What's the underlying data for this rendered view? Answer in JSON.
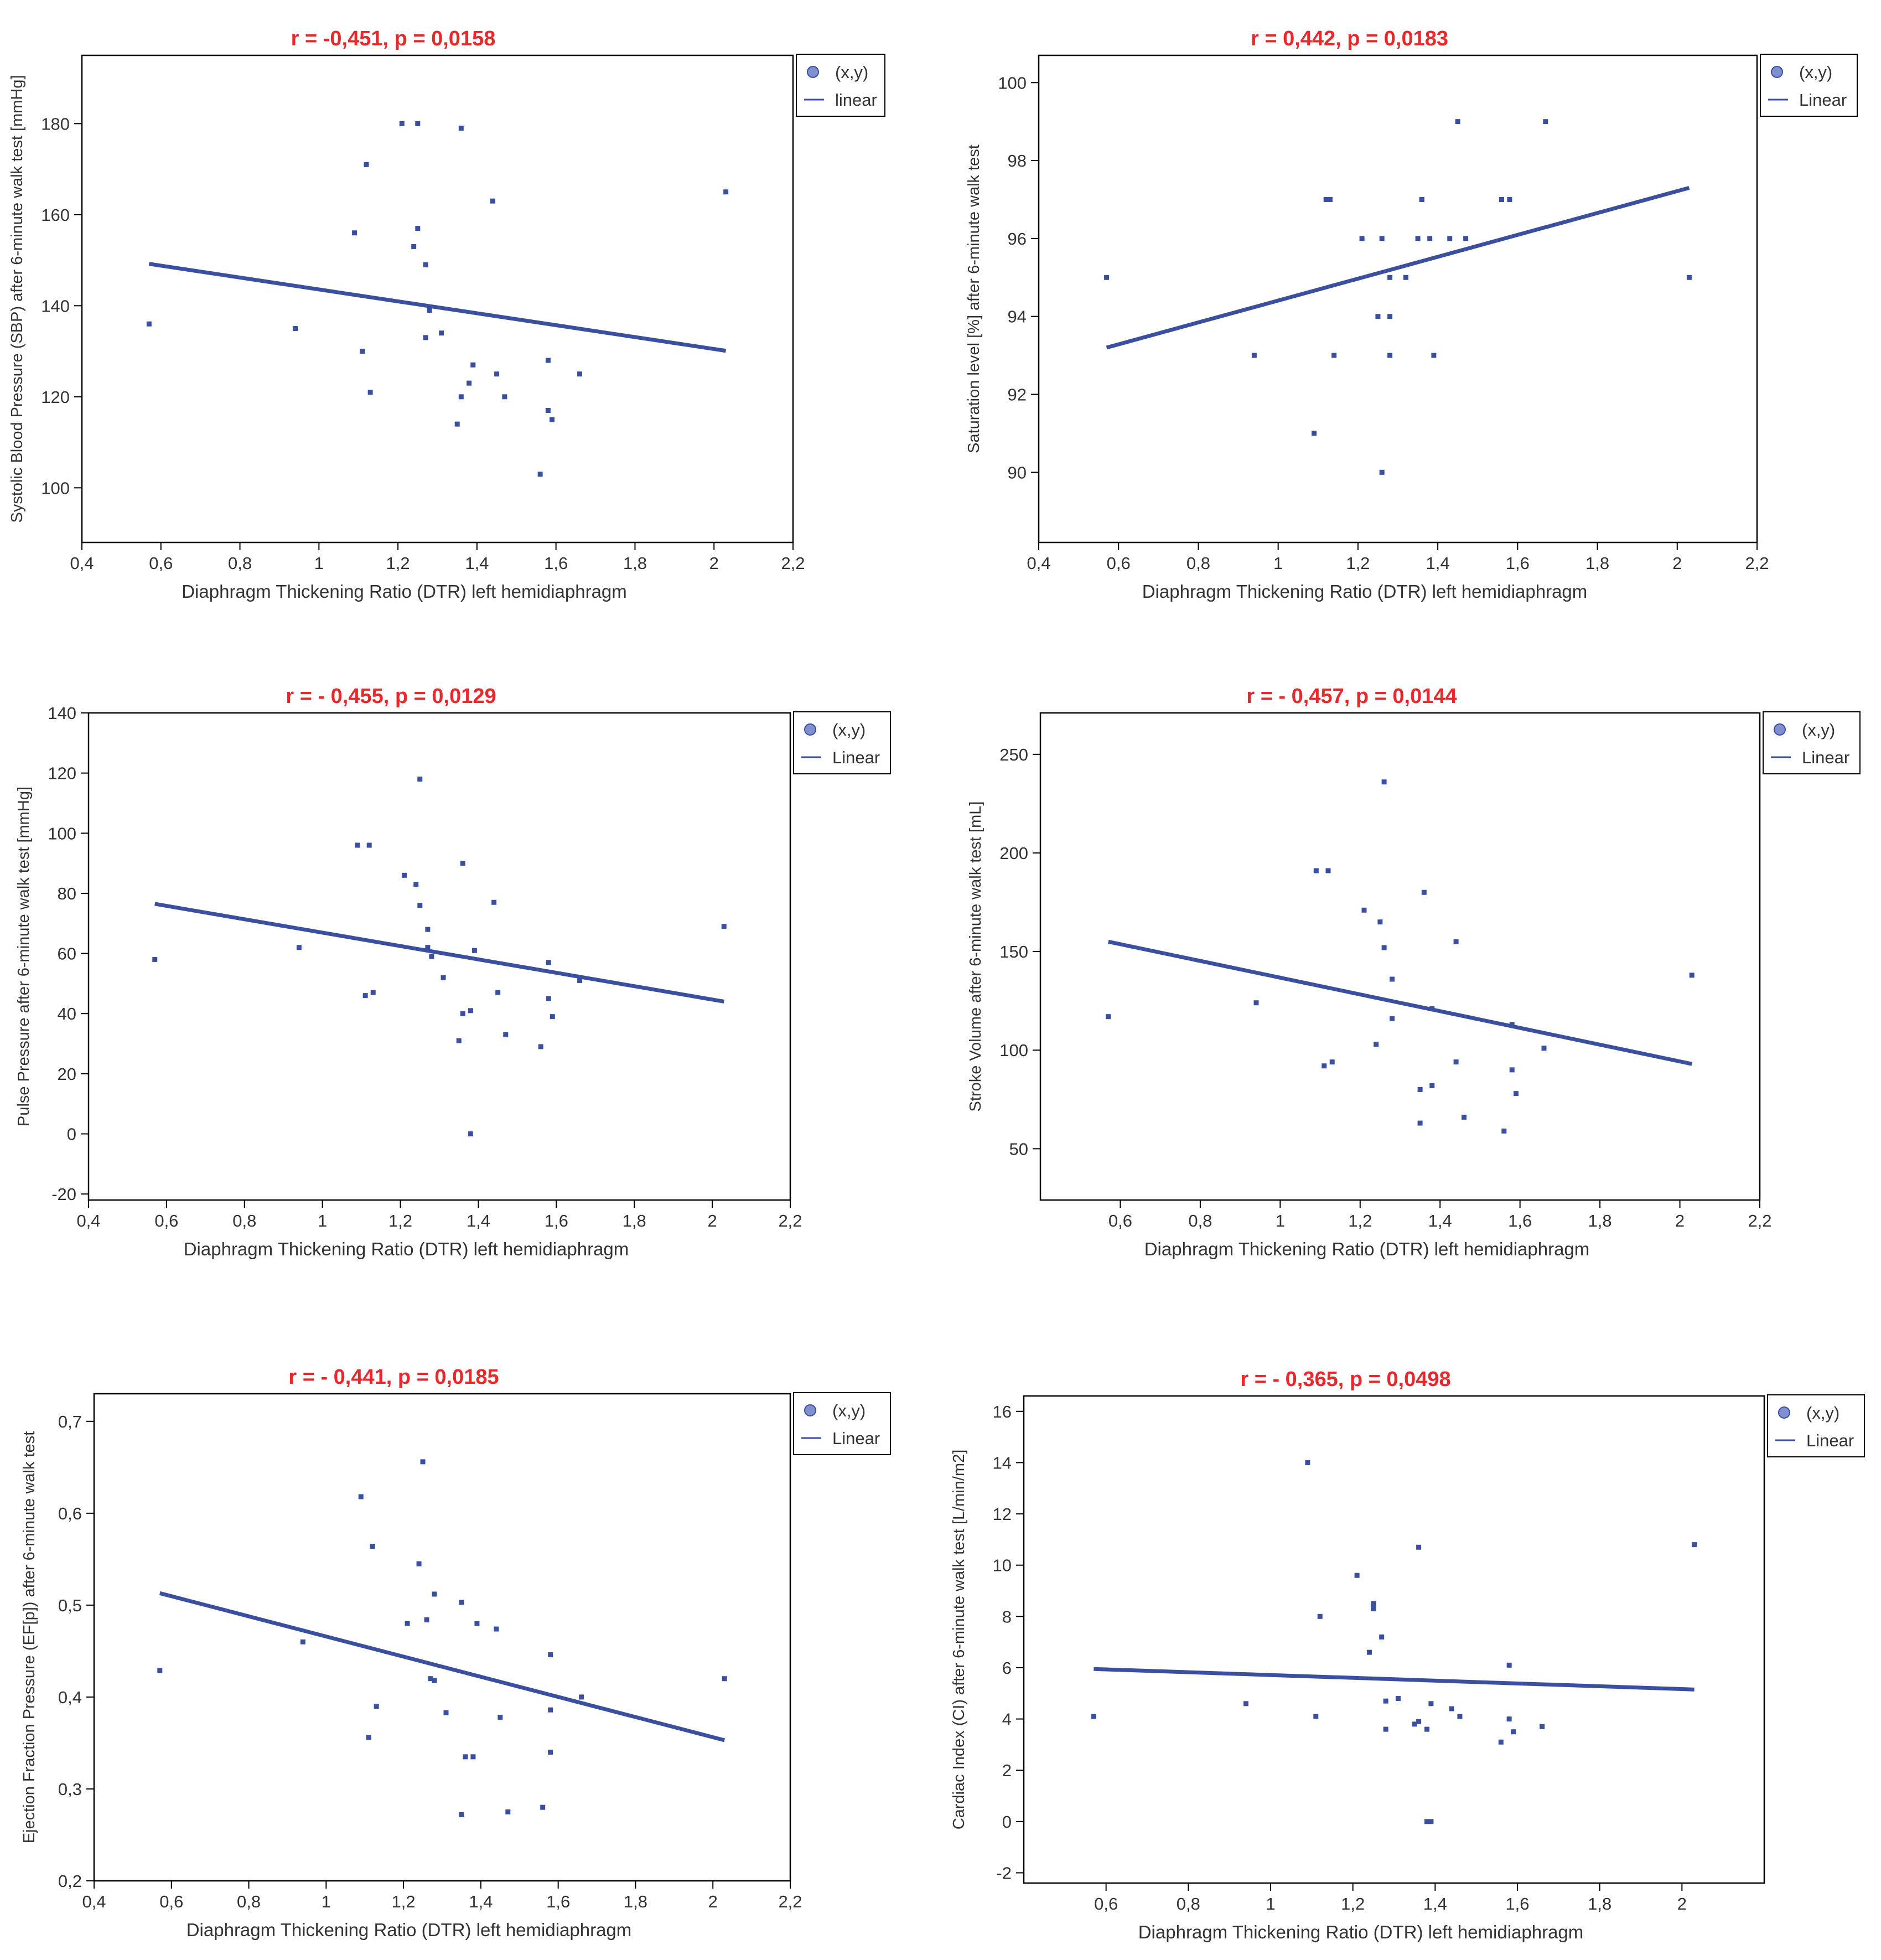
{
  "colors": {
    "points": "#3a4fa0",
    "line": "#3a4fa0",
    "title": "#e8282b",
    "axis": "#000000",
    "tick_label": "#333333"
  },
  "chart_data": [
    {
      "type": "scatter",
      "title": "r = -0,451, p = 0,0158",
      "xlabel": "Diaphragm Thickening Ratio (DTR) left hemidiaphragm",
      "ylabel": "Systolic Blood Pressure (SBP) after 6-minute walk test [mmHg]",
      "xlim": [
        0.4,
        2.2
      ],
      "ylim": [
        88,
        195
      ],
      "xticks": [
        0.4,
        0.6,
        0.8,
        1,
        1.2,
        1.4,
        1.6,
        1.8,
        2,
        2.2
      ],
      "xtick_labels": [
        "0,4",
        "0,6",
        "0,8",
        "1",
        "1,2",
        "1,4",
        "1,6",
        "1,8",
        "2",
        "2,2"
      ],
      "yticks": [
        100,
        120,
        140,
        160,
        180
      ],
      "ytick_labels": [
        "100",
        "120",
        "140",
        "160",
        "180"
      ],
      "legend": [
        "(x,y)",
        "linear"
      ],
      "legend_position": "top-right",
      "points": [
        [
          0.57,
          136
        ],
        [
          0.94,
          135
        ],
        [
          1.09,
          156
        ],
        [
          1.11,
          130
        ],
        [
          1.12,
          171
        ],
        [
          1.13,
          121
        ],
        [
          1.21,
          180
        ],
        [
          1.24,
          153
        ],
        [
          1.25,
          180
        ],
        [
          1.25,
          157
        ],
        [
          1.27,
          149
        ],
        [
          1.27,
          133
        ],
        [
          1.28,
          139
        ],
        [
          1.31,
          134
        ],
        [
          1.35,
          114
        ],
        [
          1.36,
          179
        ],
        [
          1.36,
          120
        ],
        [
          1.38,
          123
        ],
        [
          1.39,
          127
        ],
        [
          1.44,
          163
        ],
        [
          1.45,
          125
        ],
        [
          1.47,
          120
        ],
        [
          1.56,
          103
        ],
        [
          1.58,
          128
        ],
        [
          1.58,
          117
        ],
        [
          1.59,
          115
        ],
        [
          1.66,
          125
        ],
        [
          2.03,
          165
        ]
      ],
      "fit": [
        [
          0.57,
          149.2
        ],
        [
          2.03,
          130.1
        ]
      ]
    },
    {
      "type": "scatter",
      "title": "r = 0,442, p = 0,0183",
      "xlabel": "Diaphragm Thickening Ratio (DTR) left hemidiaphragm",
      "ylabel": "Saturation level [%] after 6-minute walk test",
      "xlim": [
        0.4,
        2.2
      ],
      "ylim": [
        88.2,
        100.7
      ],
      "xticks": [
        0.4,
        0.6,
        0.8,
        1,
        1.2,
        1.4,
        1.6,
        1.8,
        2,
        2.2
      ],
      "xtick_labels": [
        "0,4",
        "0,6",
        "0,8",
        "1",
        "1,2",
        "1,4",
        "1,6",
        "1,8",
        "2",
        "2,2"
      ],
      "yticks": [
        90,
        92,
        94,
        96,
        98,
        100
      ],
      "ytick_labels": [
        "90",
        "92",
        "94",
        "96",
        "98",
        "100"
      ],
      "legend": [
        "(x,y)",
        "Linear"
      ],
      "legend_position": "top-right",
      "points": [
        [
          0.57,
          95
        ],
        [
          0.94,
          93
        ],
        [
          1.09,
          91
        ],
        [
          1.12,
          97
        ],
        [
          1.13,
          97
        ],
        [
          1.14,
          93
        ],
        [
          1.21,
          96
        ],
        [
          1.25,
          94
        ],
        [
          1.26,
          90
        ],
        [
          1.26,
          96
        ],
        [
          1.28,
          95
        ],
        [
          1.28,
          94
        ],
        [
          1.28,
          93
        ],
        [
          1.32,
          95
        ],
        [
          1.35,
          96
        ],
        [
          1.36,
          97
        ],
        [
          1.36,
          97
        ],
        [
          1.38,
          96
        ],
        [
          1.39,
          93
        ],
        [
          1.43,
          96
        ],
        [
          1.45,
          99
        ],
        [
          1.47,
          96
        ],
        [
          1.56,
          97
        ],
        [
          1.58,
          97
        ],
        [
          1.67,
          99
        ],
        [
          2.03,
          95
        ]
      ],
      "fit": [
        [
          0.57,
          93.2
        ],
        [
          2.03,
          97.3
        ]
      ]
    },
    {
      "type": "scatter",
      "title": "r = - 0,455, p = 0,0129",
      "xlabel": "Diaphragm Thickening Ratio (DTR) left hemidiaphragm",
      "ylabel": "Pulse Pressure after 6-minute walk test [mmHg]",
      "xlim": [
        0.4,
        2.2
      ],
      "ylim": [
        -22,
        140
      ],
      "xticks": [
        0.4,
        0.6,
        0.8,
        1,
        1.2,
        1.4,
        1.6,
        1.8,
        2,
        2.2
      ],
      "xtick_labels": [
        "0,4",
        "0,6",
        "0,8",
        "1",
        "1,2",
        "1,4",
        "1,6",
        "1,8",
        "2",
        "2,2"
      ],
      "yticks": [
        -20,
        0,
        20,
        40,
        60,
        80,
        100,
        120,
        140
      ],
      "ytick_labels": [
        "-20",
        "0",
        "20",
        "40",
        "60",
        "80",
        "100",
        "120",
        "140"
      ],
      "legend": [
        "(x,y)",
        "Linear"
      ],
      "legend_position": "top-right",
      "points": [
        [
          0.57,
          58
        ],
        [
          0.94,
          62
        ],
        [
          1.09,
          96
        ],
        [
          1.11,
          46
        ],
        [
          1.12,
          96
        ],
        [
          1.13,
          47
        ],
        [
          1.21,
          86
        ],
        [
          1.24,
          83
        ],
        [
          1.25,
          118
        ],
        [
          1.25,
          76
        ],
        [
          1.27,
          62
        ],
        [
          1.27,
          68
        ],
        [
          1.28,
          59
        ],
        [
          1.31,
          52
        ],
        [
          1.35,
          31
        ],
        [
          1.36,
          90
        ],
        [
          1.36,
          40
        ],
        [
          1.38,
          0
        ],
        [
          1.38,
          41
        ],
        [
          1.39,
          61
        ],
        [
          1.44,
          77
        ],
        [
          1.45,
          47
        ],
        [
          1.47,
          33
        ],
        [
          1.56,
          29
        ],
        [
          1.58,
          57
        ],
        [
          1.58,
          45
        ],
        [
          1.59,
          39
        ],
        [
          1.66,
          51
        ],
        [
          2.03,
          69
        ]
      ],
      "fit": [
        [
          0.57,
          76.5
        ],
        [
          2.03,
          44
        ]
      ]
    },
    {
      "type": "scatter",
      "title": "r = - 0,457, p = 0,0144",
      "xlabel": "Diaphragm Thickening Ratio (DTR) left hemidiaphragm",
      "ylabel": "Stroke Volume after 6-minute walk test [mL]",
      "xlim": [
        0.4,
        2.2
      ],
      "ylim": [
        24,
        271
      ],
      "xticks": [
        0.6,
        0.8,
        1,
        1.2,
        1.4,
        1.6,
        1.8,
        2,
        2.2
      ],
      "xtick_labels": [
        "0,6",
        "0,8",
        "1",
        "1,2",
        "1,4",
        "1,6",
        "1,8",
        "2",
        "2,2"
      ],
      "yticks": [
        50,
        100,
        150,
        200,
        250
      ],
      "ytick_labels": [
        "50",
        "100",
        "150",
        "200",
        "250"
      ],
      "legend": [
        "(x,y)",
        "Linear"
      ],
      "legend_position": "top-right",
      "points": [
        [
          0.57,
          117
        ],
        [
          0.94,
          124
        ],
        [
          1.09,
          191
        ],
        [
          1.11,
          92
        ],
        [
          1.12,
          191
        ],
        [
          1.13,
          94
        ],
        [
          1.21,
          171
        ],
        [
          1.24,
          103
        ],
        [
          1.25,
          165
        ],
        [
          1.26,
          236
        ],
        [
          1.26,
          152
        ],
        [
          1.28,
          136
        ],
        [
          1.28,
          116
        ],
        [
          1.35,
          80
        ],
        [
          1.35,
          63
        ],
        [
          1.36,
          180
        ],
        [
          1.38,
          82
        ],
        [
          1.38,
          121
        ],
        [
          1.44,
          155
        ],
        [
          1.44,
          94
        ],
        [
          1.46,
          66
        ],
        [
          1.56,
          59
        ],
        [
          1.58,
          113
        ],
        [
          1.58,
          90
        ],
        [
          1.59,
          78
        ],
        [
          1.66,
          101
        ],
        [
          2.03,
          138
        ]
      ],
      "fit": [
        [
          0.57,
          155
        ],
        [
          2.03,
          93
        ]
      ]
    },
    {
      "type": "scatter",
      "title": "r = - 0,441, p = 0,0185",
      "xlabel": "Diaphragm Thickening Ratio (DTR) left hemidiaphragm",
      "ylabel": "Ejection Fraction Pressure (EF[p]) after 6-minute walk test",
      "xlim": [
        0.4,
        2.2
      ],
      "ylim": [
        0.2,
        0.73
      ],
      "xticks": [
        0.4,
        0.6,
        0.8,
        1,
        1.2,
        1.4,
        1.6,
        1.8,
        2,
        2.2
      ],
      "xtick_labels": [
        "0,4",
        "0,6",
        "0,8",
        "1",
        "1,2",
        "1,4",
        "1,6",
        "1,8",
        "2",
        "2,2"
      ],
      "yticks": [
        0.2,
        0.3,
        0.4,
        0.5,
        0.6,
        0.7
      ],
      "ytick_labels": [
        "0,2",
        "0,3",
        "0,4",
        "0,5",
        "0,6",
        "0,7"
      ],
      "legend": [
        "(x,y)",
        "Linear"
      ],
      "legend_position": "top-right",
      "points": [
        [
          0.57,
          0.429
        ],
        [
          0.94,
          0.46
        ],
        [
          1.09,
          0.618
        ],
        [
          1.11,
          0.356
        ],
        [
          1.12,
          0.564
        ],
        [
          1.13,
          0.39
        ],
        [
          1.21,
          0.48
        ],
        [
          1.24,
          0.545
        ],
        [
          1.25,
          0.656
        ],
        [
          1.26,
          0.484
        ],
        [
          1.27,
          0.42
        ],
        [
          1.28,
          0.512
        ],
        [
          1.28,
          0.418
        ],
        [
          1.31,
          0.383
        ],
        [
          1.35,
          0.503
        ],
        [
          1.35,
          0.272
        ],
        [
          1.36,
          0.335
        ],
        [
          1.38,
          0.335
        ],
        [
          1.39,
          0.48
        ],
        [
          1.44,
          0.474
        ],
        [
          1.45,
          0.378
        ],
        [
          1.47,
          0.275
        ],
        [
          1.56,
          0.28
        ],
        [
          1.58,
          0.446
        ],
        [
          1.58,
          0.386
        ],
        [
          1.58,
          0.34
        ],
        [
          1.66,
          0.4
        ],
        [
          2.03,
          0.42
        ]
      ],
      "fit": [
        [
          0.57,
          0.513
        ],
        [
          2.03,
          0.353
        ]
      ]
    },
    {
      "type": "scatter",
      "title": "r = - 0,365, p = 0,0498",
      "xlabel": "Diaphragm Thickening Ratio (DTR) left hemidiaphragm",
      "ylabel": "Cardiac Index (CI) after 6-minute walk test [L/min/m2]",
      "xlim": [
        0.4,
        2.2
      ],
      "ylim": [
        -2.4,
        16.6
      ],
      "xticks": [
        0.6,
        0.8,
        1,
        1.2,
        1.4,
        1.6,
        1.8,
        2
      ],
      "xtick_labels": [
        "0,6",
        "0,8",
        "1",
        "1,2",
        "1,4",
        "1,6",
        "1,8",
        "2"
      ],
      "yticks": [
        -2,
        0,
        2,
        4,
        6,
        8,
        10,
        12,
        14,
        16
      ],
      "ytick_labels": [
        "-2",
        "0",
        "2",
        "4",
        "6",
        "8",
        "10",
        "12",
        "14",
        "16"
      ],
      "legend": [
        "(x,y)",
        "Linear"
      ],
      "legend_position": "top-right",
      "points": [
        [
          0.57,
          4.1
        ],
        [
          0.94,
          4.6
        ],
        [
          1.09,
          14
        ],
        [
          1.11,
          4.1
        ],
        [
          1.12,
          8
        ],
        [
          1.21,
          9.6
        ],
        [
          1.24,
          6.6
        ],
        [
          1.25,
          8.5
        ],
        [
          1.25,
          8.3
        ],
        [
          1.27,
          7.2
        ],
        [
          1.28,
          4.7
        ],
        [
          1.28,
          3.6
        ],
        [
          1.31,
          4.8
        ],
        [
          1.35,
          3.8
        ],
        [
          1.36,
          10.7
        ],
        [
          1.36,
          3.9
        ],
        [
          1.38,
          0
        ],
        [
          1.38,
          3.6
        ],
        [
          1.39,
          4.6
        ],
        [
          1.39,
          0
        ],
        [
          1.44,
          4.4
        ],
        [
          1.46,
          4.1
        ],
        [
          1.56,
          3.1
        ],
        [
          1.58,
          6.1
        ],
        [
          1.58,
          4
        ],
        [
          1.59,
          3.5
        ],
        [
          1.66,
          3.7
        ],
        [
          2.03,
          10.8
        ]
      ],
      "fit": [
        [
          0.57,
          5.95
        ],
        [
          2.03,
          5.15
        ]
      ]
    }
  ]
}
